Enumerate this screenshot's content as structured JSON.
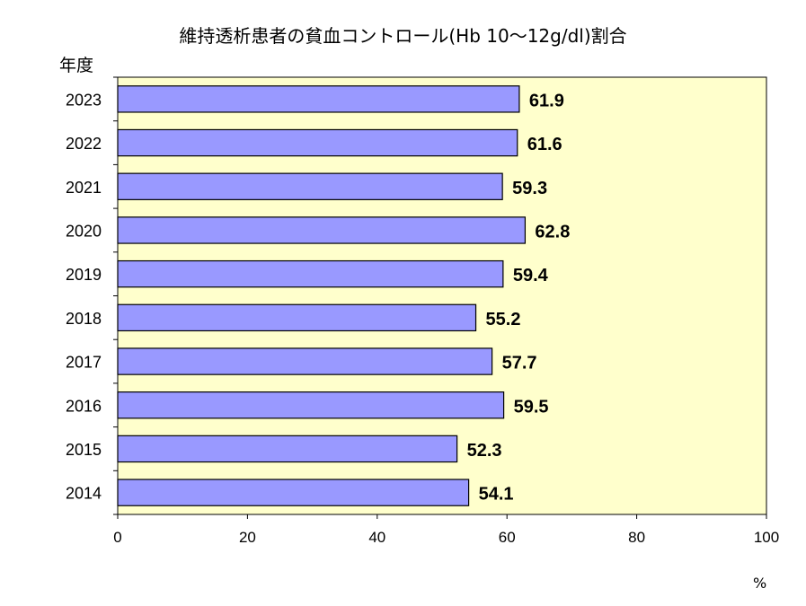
{
  "chart_data": {
    "type": "bar",
    "orientation": "horizontal",
    "title": "維持透析患者の貧血コントロール(Hb 10〜12g/dl)割合",
    "ylabel": "年度",
    "xunit": "%",
    "categories": [
      "2023",
      "2022",
      "2021",
      "2020",
      "2019",
      "2018",
      "2017",
      "2016",
      "2015",
      "2014"
    ],
    "values": [
      61.9,
      61.6,
      59.3,
      62.8,
      59.4,
      55.2,
      57.7,
      59.5,
      52.3,
      54.1
    ],
    "value_labels": [
      "61.9",
      "61.6",
      "59.3",
      "62.8",
      "59.4",
      "55.2",
      "57.7",
      "59.5",
      "52.3",
      "54.1"
    ],
    "xlim": [
      0,
      100
    ],
    "xticks": [
      "0",
      "20",
      "40",
      "60",
      "80",
      "100"
    ],
    "grid": false,
    "colors": {
      "bar": "#9999ff",
      "plot_bg": "#ffffcc",
      "bar_stroke": "#000000"
    }
  }
}
